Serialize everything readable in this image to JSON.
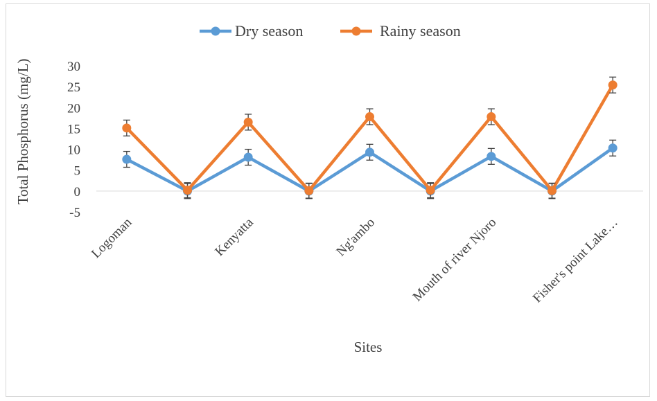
{
  "chart_data": {
    "type": "line",
    "categories": [
      "Logoman",
      "",
      "Kenyatta",
      "",
      "Ng'ambo",
      "",
      "Mouth of river Njoro",
      "",
      "Fisher's point Lake…"
    ],
    "series": [
      {
        "name": "Dry season",
        "color": "#5b9bd5",
        "values": [
          7.6,
          0,
          8.1,
          0,
          9.3,
          0,
          8.3,
          0,
          10.3
        ],
        "error": [
          1.9,
          1.8,
          1.9,
          1.8,
          1.9,
          1.8,
          1.9,
          1.8,
          1.9
        ]
      },
      {
        "name": "Rainy season",
        "color": "#ed7d31",
        "values": [
          15.1,
          0.2,
          16.5,
          0.1,
          17.8,
          0.2,
          17.8,
          0.1,
          25.4
        ],
        "error": [
          1.9,
          1.8,
          1.9,
          1.8,
          1.9,
          1.8,
          1.9,
          1.8,
          1.9
        ]
      }
    ],
    "ylim": [
      -5,
      30
    ],
    "yticks": [
      "-5",
      "0",
      "5",
      "10",
      "15",
      "20",
      "25",
      "30"
    ],
    "ylabel": "Total Phosphorus (mg/L)",
    "xlabel": "Sites",
    "legend_position": "top",
    "gridlines": false
  }
}
